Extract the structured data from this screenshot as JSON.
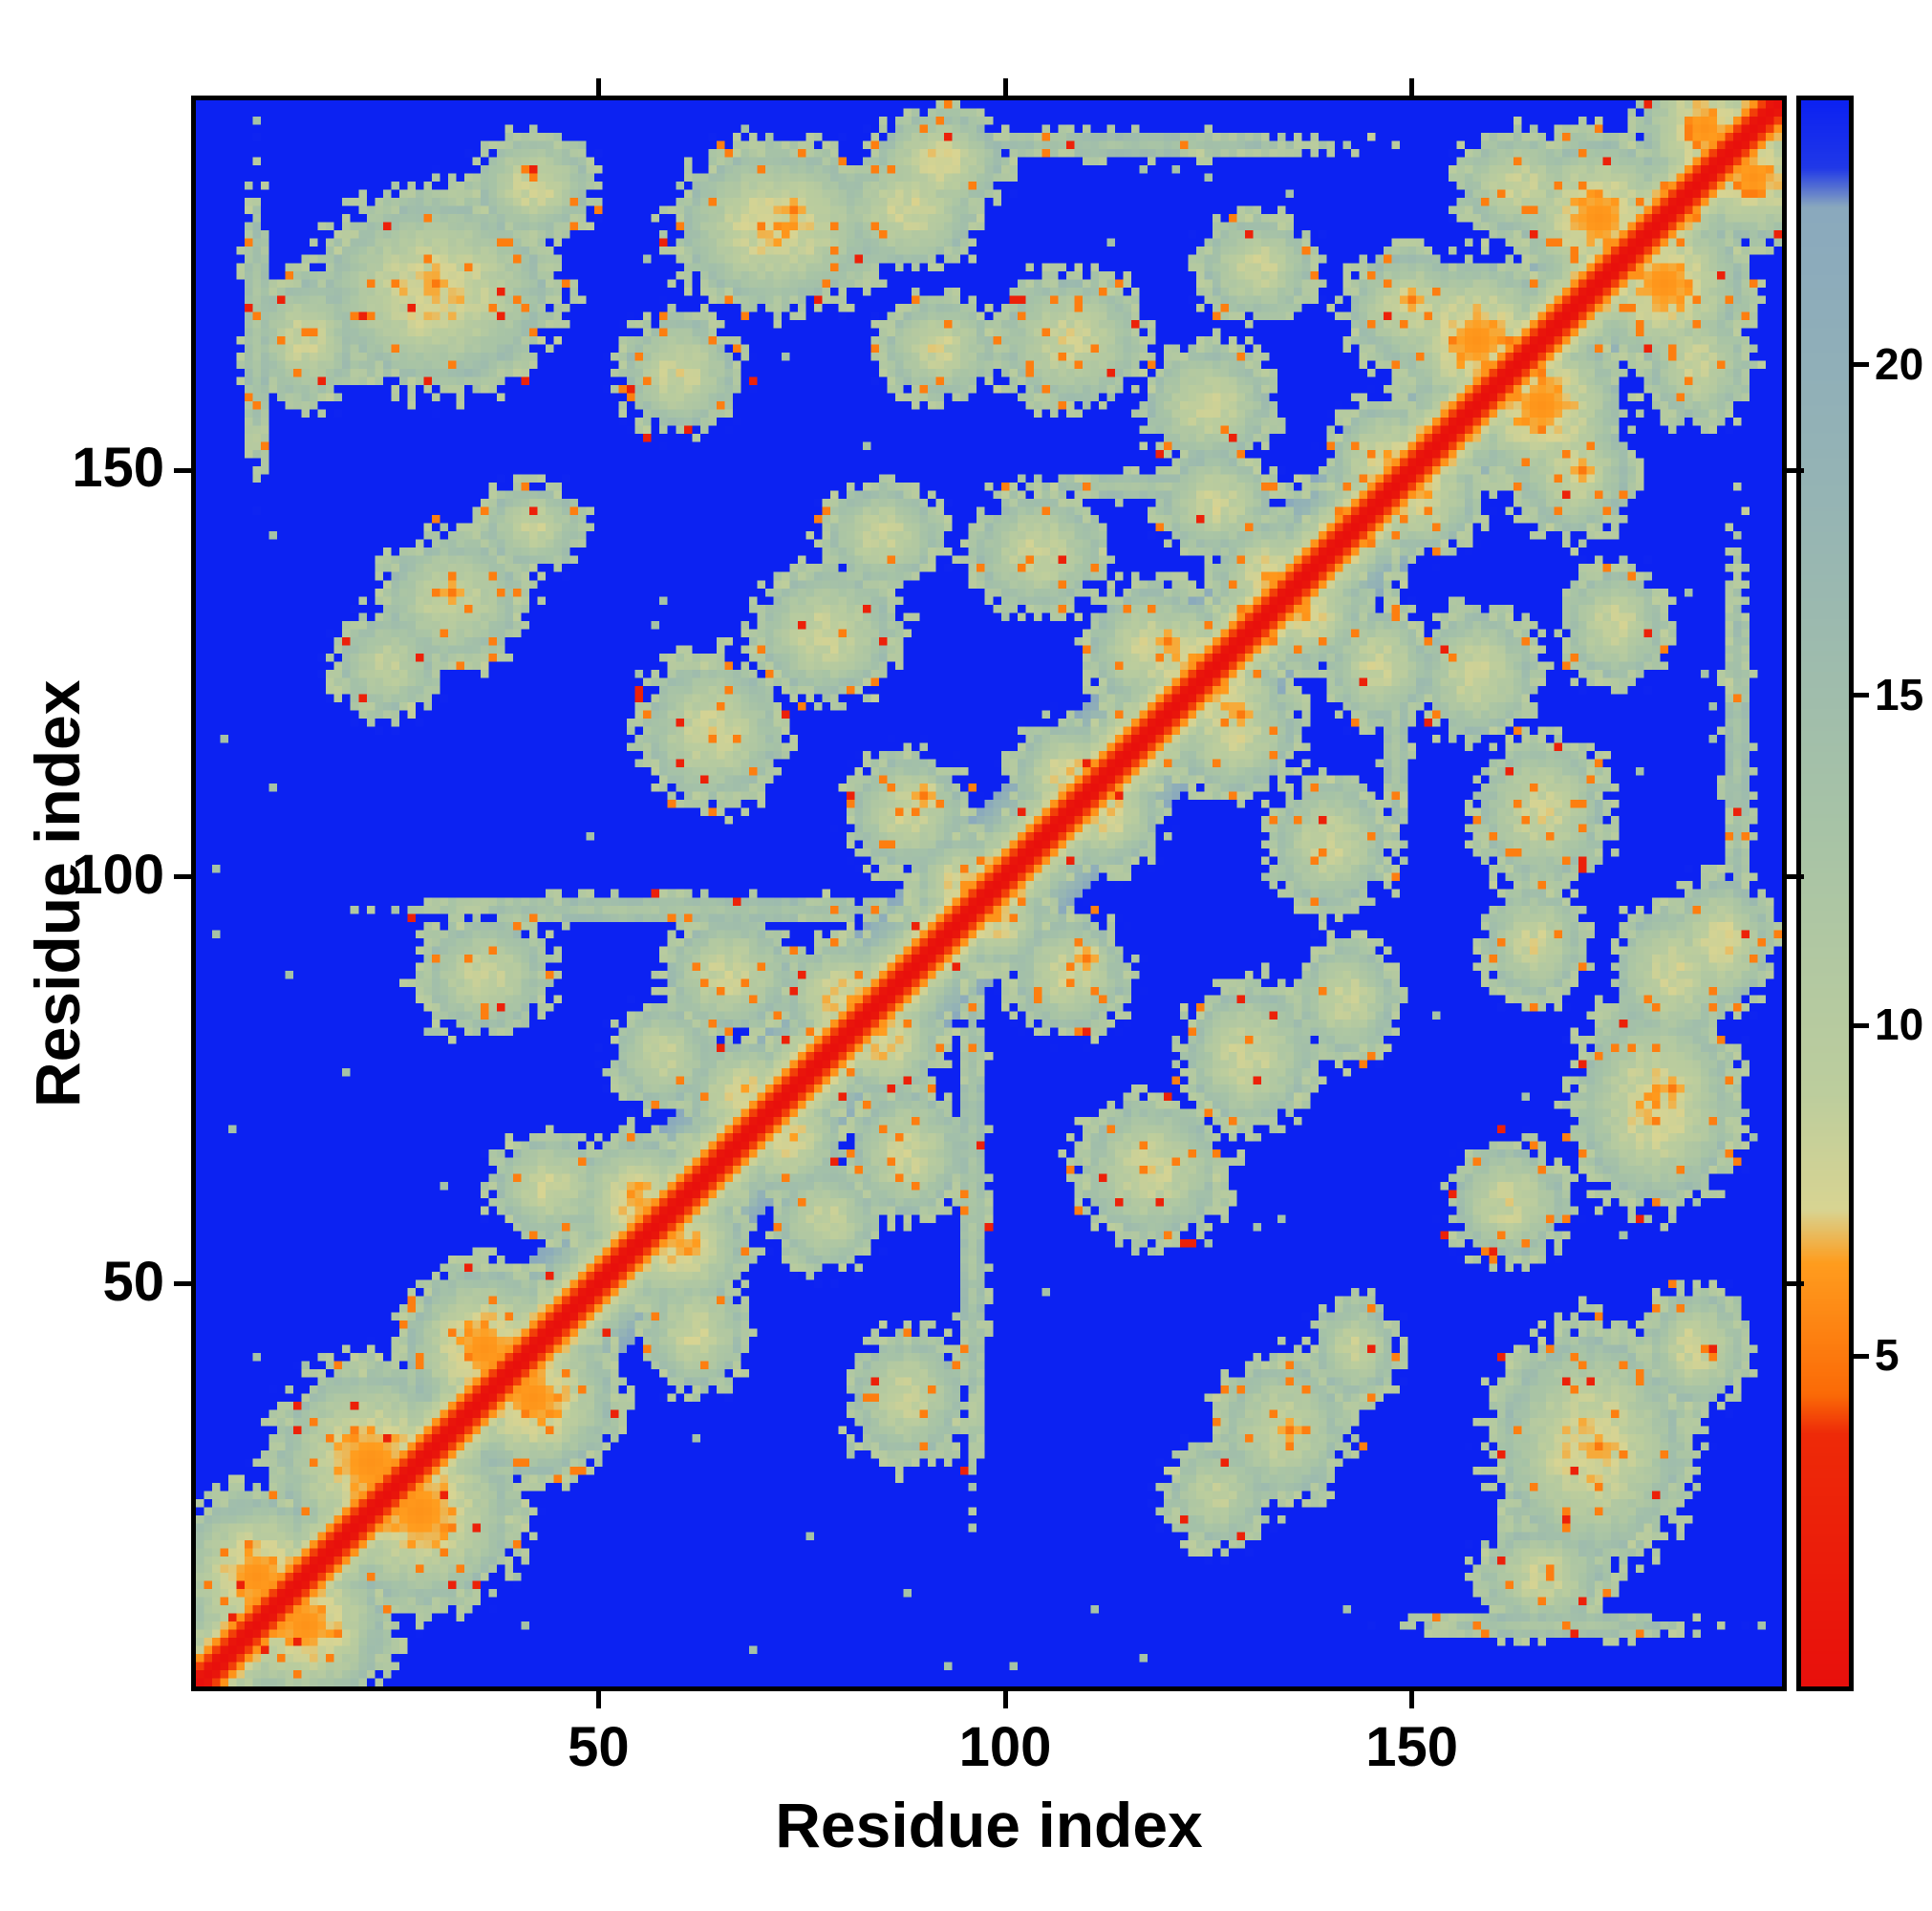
{
  "chart_data": {
    "type": "heatmap",
    "title": "",
    "xlabel": "Residue index",
    "ylabel": "Residue index",
    "n_residues": 195,
    "axis_ticks": [
      50,
      100,
      150
    ],
    "colorbar": {
      "min": 0,
      "max": 24,
      "ticks": [
        5,
        10,
        15,
        20
      ]
    },
    "legend_position": "right",
    "grid": false,
    "background_value_color": "#0c22f2",
    "diagonal_slope": 2.0,
    "colormap_stops": [
      [
        0,
        "#e8100c"
      ],
      [
        3.8,
        "#ee2a08"
      ],
      [
        4.4,
        "#fb6a07"
      ],
      [
        6.4,
        "#ff9d1e"
      ],
      [
        7.2,
        "#d8d492"
      ],
      [
        9,
        "#bccd9d"
      ],
      [
        13,
        "#a7c3a6"
      ],
      [
        18,
        "#95b4b4"
      ],
      [
        22.4,
        "#8aa9bd"
      ],
      [
        23.0,
        "#2038e8"
      ],
      [
        24,
        "#0c22f2"
      ]
    ],
    "contacts": [
      [
        8,
        14,
        11,
        11,
        6
      ],
      [
        22,
        28,
        13,
        13,
        6
      ],
      [
        36,
        42,
        11,
        11,
        6
      ],
      [
        55,
        60,
        9,
        9,
        6.5
      ],
      [
        68,
        73,
        8,
        8,
        7
      ],
      [
        80,
        85,
        8,
        8,
        7
      ],
      [
        95,
        99,
        7,
        7,
        7
      ],
      [
        108,
        112,
        8,
        8,
        7
      ],
      [
        122,
        127,
        8,
        8,
        7
      ],
      [
        133,
        137,
        8,
        8,
        7
      ],
      [
        147,
        151,
        8,
        8,
        7
      ],
      [
        158,
        166,
        11,
        11,
        6
      ],
      [
        173,
        181,
        11,
        11,
        6
      ],
      [
        186,
        192,
        9,
        9,
        6
      ],
      [
        14,
        166,
        7,
        9,
        8
      ],
      [
        30,
        172,
        16,
        13,
        7
      ],
      [
        42,
        185,
        8,
        7,
        7.5
      ],
      [
        60,
        162,
        8,
        8,
        8
      ],
      [
        72,
        180,
        14,
        11,
        7
      ],
      [
        92,
        188,
        9,
        7,
        7.5
      ],
      [
        108,
        166,
        10,
        9,
        8
      ],
      [
        125,
        158,
        9,
        8,
        8
      ],
      [
        131,
        175,
        8,
        7,
        8
      ],
      [
        150,
        170,
        9,
        8,
        8
      ],
      [
        163,
        185,
        8,
        7,
        8
      ],
      [
        24,
        126,
        7,
        7,
        9
      ],
      [
        32,
        134,
        10,
        9,
        8.5
      ],
      [
        42,
        143,
        7,
        6,
        8.5
      ],
      [
        64,
        118,
        10,
        10,
        8
      ],
      [
        78,
        130,
        10,
        9,
        8
      ],
      [
        88,
        108,
        8,
        8,
        8
      ],
      [
        104,
        140,
        9,
        8,
        8
      ],
      [
        118,
        128,
        9,
        9,
        8
      ],
      [
        126,
        146,
        8,
        7,
        8
      ],
      [
        66,
        88,
        9,
        8,
        8
      ],
      [
        58,
        78,
        7,
        7,
        8.5
      ],
      [
        44,
        62,
        8,
        7,
        8
      ],
      [
        36,
        88,
        9,
        8,
        8.5
      ],
      [
        85,
        142,
        8,
        7,
        8
      ],
      [
        88,
        182,
        10,
        8,
        8
      ],
      [
        92,
        165,
        8,
        7,
        8
      ],
      [
        60,
        96,
        38,
        2,
        12
      ],
      [
        120,
        148,
        22,
        2,
        12
      ],
      [
        115,
        190,
        30,
        2,
        13
      ],
      [
        8,
        168,
        2,
        20,
        12
      ],
      [
        30,
        173,
        3,
        3,
        5
      ],
      [
        74,
        182,
        3,
        3,
        5
      ],
      [
        120,
        129,
        3,
        3,
        5
      ],
      [
        90,
        110,
        3,
        3,
        5
      ],
      [
        150,
        171,
        3,
        3,
        5
      ],
      [
        32,
        135,
        3,
        3,
        5
      ]
    ],
    "speckle": {
      "orange_threshold": 0.955,
      "orange_value": 5.2,
      "red_threshold": 0.992,
      "red_value": 2.5,
      "blue_fleck_threshold": 0.9975,
      "blue_fleck_value": 13.5,
      "jitter": 2.4
    }
  }
}
